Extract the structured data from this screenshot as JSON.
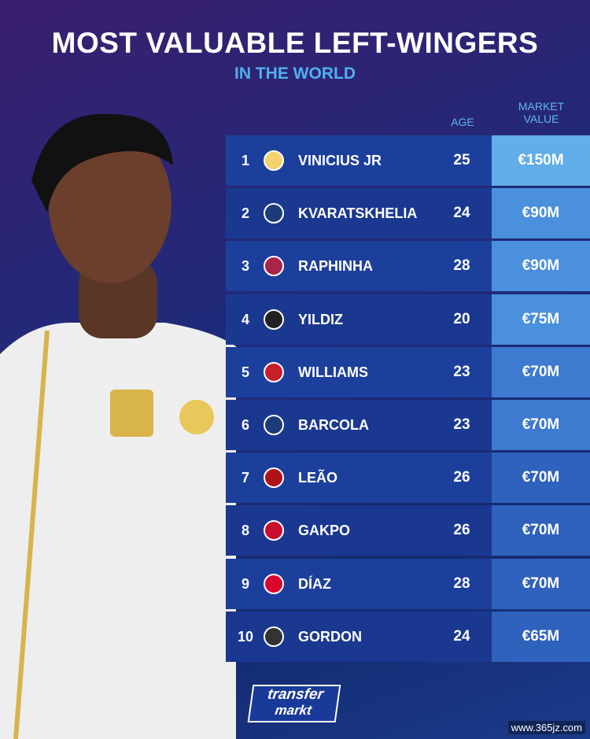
{
  "header": {
    "title": "MOST VALUABLE LEFT-WINGERS",
    "subtitle": "IN THE WORLD"
  },
  "columns": {
    "age": "AGE",
    "market_value": "MARKET VALUE"
  },
  "rows": [
    {
      "rank": 1,
      "name": "VINICIUS JR",
      "age": 25,
      "value": "€150M"
    },
    {
      "rank": 2,
      "name": "KVARATSKHELIA",
      "age": 24,
      "value": "€90M"
    },
    {
      "rank": 3,
      "name": "RAPHINHA",
      "age": 28,
      "value": "€90M"
    },
    {
      "rank": 4,
      "name": "YILDIZ",
      "age": 20,
      "value": "€75M"
    },
    {
      "rank": 5,
      "name": "WILLIAMS",
      "age": 23,
      "value": "€70M"
    },
    {
      "rank": 6,
      "name": "BARCOLA",
      "age": 23,
      "value": "€70M"
    },
    {
      "rank": 7,
      "name": "LEÃO",
      "age": 26,
      "value": "€70M"
    },
    {
      "rank": 8,
      "name": "GAKPO",
      "age": 26,
      "value": "€70M"
    },
    {
      "rank": 9,
      "name": "DÍAZ",
      "age": 28,
      "value": "€70M"
    },
    {
      "rank": 10,
      "name": "GORDON",
      "age": 24,
      "value": "€65M"
    }
  ],
  "footer": {
    "logo_top": "transfer",
    "logo_bottom": "markt"
  },
  "watermark": "www.365jz.com"
}
